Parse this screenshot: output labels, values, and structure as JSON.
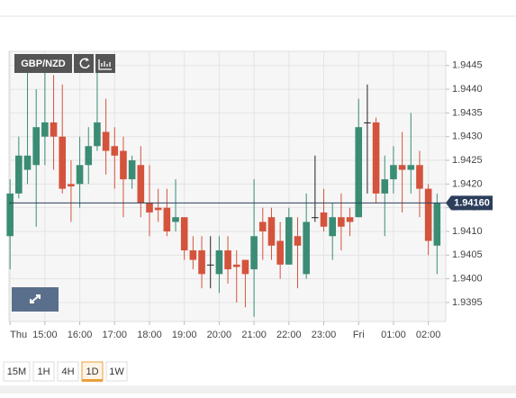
{
  "chart_data": {
    "type": "candlestick",
    "symbol": "GBP/NZD",
    "x": [
      14,
      14.25,
      14.5,
      14.75,
      15,
      15.25,
      15.5,
      15.75,
      16,
      16.25,
      16.5,
      16.75,
      17,
      17.25,
      17.5,
      17.75,
      18,
      18.25,
      18.5,
      18.75,
      19,
      19.25,
      19.5,
      19.75,
      20,
      20.25,
      20.5,
      20.75,
      21,
      21.25,
      21.5,
      21.75,
      22,
      22.25,
      22.5,
      22.75,
      23,
      23.25,
      23.5,
      23.75,
      24,
      24.25,
      24.5,
      24.75,
      25,
      25.25,
      25.5,
      25.75,
      26,
      26.25
    ],
    "open": [
      1.9409,
      1.9418,
      1.9423,
      1.9424,
      1.943,
      1.9433,
      1.943,
      1.942,
      1.942,
      1.9424,
      1.9428,
      1.9431,
      1.9428,
      1.9427,
      1.9421,
      1.9424,
      1.9416,
      1.9415,
      1.9415,
      1.9412,
      1.9413,
      1.9406,
      1.9406,
      1.9403,
      1.9401,
      1.9406,
      1.9403,
      1.9404,
      1.9402,
      1.9412,
      1.9413,
      1.9408,
      1.9403,
      1.9409,
      1.9401,
      1.9413,
      1.9414,
      1.9409,
      1.9413,
      1.9413,
      1.9413,
      1.9433,
      1.9433,
      1.9418,
      1.9421,
      1.9424,
      1.9423,
      1.9424,
      1.9419,
      1.9407
    ],
    "high": [
      1.9421,
      1.943,
      1.9447,
      1.944,
      1.9447,
      1.9443,
      1.9441,
      1.9425,
      1.943,
      1.9432,
      1.9445,
      1.9438,
      1.9432,
      1.943,
      1.9426,
      1.9428,
      1.9424,
      1.9419,
      1.9419,
      1.9421,
      1.9413,
      1.9409,
      1.9409,
      1.9409,
      1.9409,
      1.9409,
      1.9406,
      1.9404,
      1.9421,
      1.9415,
      1.9415,
      1.9412,
      1.9415,
      1.9413,
      1.9418,
      1.9426,
      1.9419,
      1.9416,
      1.9418,
      1.9415,
      1.9438,
      1.9441,
      1.9434,
      1.9426,
      1.9428,
      1.9431,
      1.9435,
      1.9427,
      1.942,
      1.9418
    ],
    "low": [
      1.9402,
      1.9417,
      1.942,
      1.9411,
      1.9424,
      1.9423,
      1.9418,
      1.9412,
      1.9415,
      1.942,
      1.9427,
      1.9422,
      1.9419,
      1.9413,
      1.9419,
      1.9413,
      1.9409,
      1.9412,
      1.9409,
      1.941,
      1.9404,
      1.9402,
      1.9398,
      1.9398,
      1.9397,
      1.9399,
      1.9395,
      1.9394,
      1.9392,
      1.9404,
      1.9404,
      1.94,
      1.9403,
      1.9398,
      1.94,
      1.9412,
      1.941,
      1.9404,
      1.9406,
      1.9409,
      1.9413,
      1.9418,
      1.9416,
      1.9409,
      1.9418,
      1.9414,
      1.9418,
      1.9413,
      1.9405,
      1.9401
    ],
    "close": [
      1.9418,
      1.9426,
      1.9426,
      1.9432,
      1.9433,
      1.943,
      1.9419,
      1.94195,
      1.9424,
      1.9428,
      1.9433,
      1.9427,
      1.9426,
      1.9421,
      1.9425,
      1.9416,
      1.9414,
      1.94145,
      1.941,
      1.9413,
      1.9406,
      1.9404,
      1.9401,
      1.9403,
      1.9406,
      1.9402,
      1.94025,
      1.9401,
      1.9409,
      1.941,
      1.9407,
      1.9403,
      1.9413,
      1.9407,
      1.9412,
      1.9413,
      1.9411,
      1.9413,
      1.9411,
      1.9412,
      1.9432,
      1.9433,
      1.9418,
      1.9421,
      1.9424,
      1.9423,
      1.9424,
      1.9419,
      1.9408,
      1.9416
    ],
    "up_color": "#3b8c74",
    "down_color": "#d4533d",
    "xlim": [
      13.97,
      26.5
    ],
    "xticks": [
      {
        "value": 14,
        "label": "Thu"
      },
      {
        "value": 15,
        "label": "15:00"
      },
      {
        "value": 16,
        "label": "16:00"
      },
      {
        "value": 17,
        "label": "17:00"
      },
      {
        "value": 18,
        "label": "18:00"
      },
      {
        "value": 19,
        "label": "19:00"
      },
      {
        "value": 20,
        "label": "20:00"
      },
      {
        "value": 21,
        "label": "21:00"
      },
      {
        "value": 22,
        "label": "22:00"
      },
      {
        "value": 23,
        "label": "23:00"
      },
      {
        "value": 24,
        "label": "Fri"
      },
      {
        "value": 25,
        "label": "01:00"
      },
      {
        "value": 26,
        "label": "02:00"
      }
    ],
    "ylim": [
      1.9391,
      1.9448
    ],
    "yticks": [
      {
        "value": 1.9395,
        "label": "1.9395"
      },
      {
        "value": 1.94,
        "label": "1.9400"
      },
      {
        "value": 1.9405,
        "label": "1.9405"
      },
      {
        "value": 1.941,
        "label": "1.9410"
      },
      {
        "value": 1.9415,
        "label": "1.9415"
      },
      {
        "value": 1.942,
        "label": "1.9420"
      },
      {
        "value": 1.9425,
        "label": "1.9425"
      },
      {
        "value": 1.943,
        "label": "1.9430"
      },
      {
        "value": 1.9435,
        "label": "1.9435"
      },
      {
        "value": 1.944,
        "label": "1.9440"
      },
      {
        "value": 1.9445,
        "label": "1.9445"
      }
    ],
    "grid": true,
    "last_price": {
      "value": 1.9416,
      "label": "1.94160"
    },
    "timeframes": [
      "15M",
      "1H",
      "4H",
      "1D",
      "1W"
    ],
    "active_timeframe": 3
  }
}
